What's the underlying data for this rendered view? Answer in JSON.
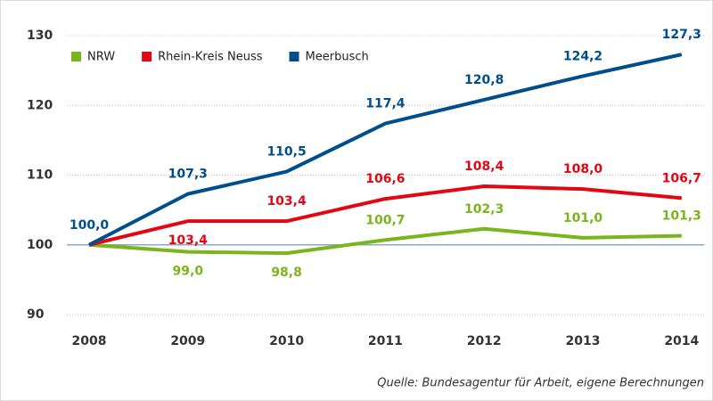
{
  "chart_data": {
    "type": "line",
    "categories": [
      "2008",
      "2009",
      "2010",
      "2011",
      "2012",
      "2013",
      "2014"
    ],
    "series": [
      {
        "name": "NRW",
        "color": "#7ab51d",
        "values": [
          100.0,
          99.0,
          98.8,
          100.7,
          102.3,
          101.0,
          101.3
        ],
        "value_labels": [
          null,
          "99,0",
          "98,8",
          "100,7",
          "102,3",
          "101,0",
          "101,3"
        ]
      },
      {
        "name": "Rhein-Kreis Neuss",
        "color": "#e30613",
        "values": [
          100.0,
          103.4,
          103.4,
          106.6,
          108.4,
          108.0,
          106.7
        ],
        "value_labels": [
          null,
          "103,4",
          "103,4",
          "106,6",
          "108,4",
          "108,0",
          "106,7"
        ]
      },
      {
        "name": "Meerbusch",
        "color": "#004f8c",
        "values": [
          100.0,
          107.3,
          110.5,
          117.4,
          120.8,
          124.2,
          127.3
        ],
        "value_labels": [
          "100,0",
          "107,3",
          "110,5",
          "117,4",
          "120,8",
          "124,2",
          "127,3"
        ]
      }
    ],
    "ylim": [
      90,
      130
    ],
    "yticks": [
      90,
      100,
      110,
      120,
      130
    ],
    "grid": true,
    "reference_line": 100,
    "legend": "top-left",
    "source": "Quelle: Bundesagentur für Arbeit, eigene Berechnungen"
  }
}
